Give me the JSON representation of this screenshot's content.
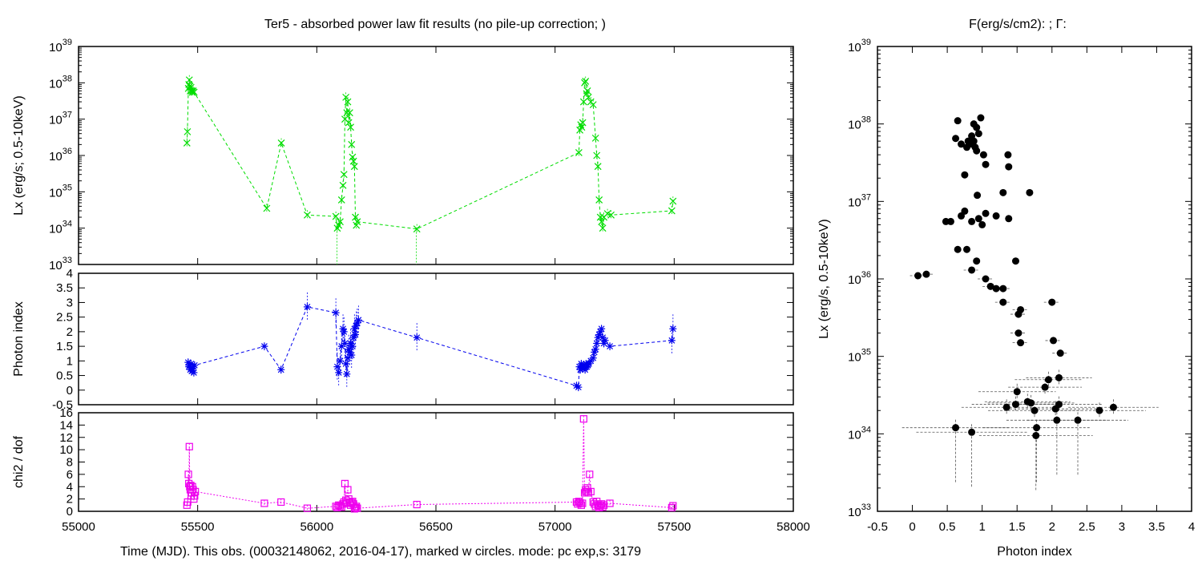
{
  "titles": {
    "left": "Ter5  - absorbed power law fit results (no pile-up correction;    )",
    "right": "F(erg/s/cm2):   ; Γ:"
  },
  "xlabel_time": "Time (MJD). This obs. (00032148062, 2016-04-17), marked w circles. mode: pc exp,s: 3179",
  "colors": {
    "lx": "#00dd00",
    "index": "#0000ee",
    "chi2": "#ee00ee",
    "scatter": "#000000",
    "errbar": "#555555"
  },
  "chart_data": [
    {
      "type": "line",
      "name": "lx-time",
      "ylabel": "Lx (erg/s; 0.5-10keV)",
      "yscale": "log",
      "xlim": [
        55000,
        58000
      ],
      "ylim": [
        1e+33,
        1e+39
      ],
      "xticks": [
        55000,
        55500,
        56000,
        56500,
        57000,
        57500,
        58000
      ],
      "yticks": [
        1e+33,
        1e+34,
        1e+35,
        1e+36,
        1e+37,
        1e+38,
        1e+39
      ],
      "ytick_labels": [
        [
          "10",
          "33"
        ],
        [
          "10",
          "34"
        ],
        [
          "10",
          "35"
        ],
        [
          "10",
          "36"
        ],
        [
          "10",
          "37"
        ],
        [
          "10",
          "38"
        ],
        [
          "10",
          "39"
        ]
      ],
      "points": [
        [
          55455,
          2.2e+36
        ],
        [
          55457,
          4.5e+36
        ],
        [
          55461,
          7e+37
        ],
        [
          55463,
          9e+37
        ],
        [
          55465,
          1.2e+38
        ],
        [
          55467,
          8e+37
        ],
        [
          55469,
          6e+37
        ],
        [
          55472,
          7.5e+37
        ],
        [
          55475,
          6e+37
        ],
        [
          55478,
          5.5e+37
        ],
        [
          55481,
          6e+37
        ],
        [
          55485,
          5.5e+37
        ],
        [
          55790,
          3.5e+34
        ],
        [
          55851,
          2.2e+36
        ],
        [
          55960,
          2.3e+34
        ],
        [
          56080,
          2.1e+34
        ],
        [
          56086,
          1e+34
        ],
        [
          56092,
          1.2e+34
        ],
        [
          56098,
          1.5e+34
        ],
        [
          56104,
          6e+34
        ],
        [
          56110,
          1.5e+35
        ],
        [
          56114,
          3e+35
        ],
        [
          56118,
          1e+37
        ],
        [
          56122,
          4e+37
        ],
        [
          56126,
          1.5e+37
        ],
        [
          56130,
          3e+37
        ],
        [
          56134,
          8e+36
        ],
        [
          56138,
          1.5e+37
        ],
        [
          56142,
          6e+36
        ],
        [
          56146,
          2e+36
        ],
        [
          56150,
          9e+35
        ],
        [
          56154,
          7e+35
        ],
        [
          56158,
          5e+35
        ],
        [
          56162,
          2e+34
        ],
        [
          56166,
          1.2e+34
        ],
        [
          56170,
          1.5e+34
        ],
        [
          56420,
          9.5e+33
        ],
        [
          57100,
          1.2e+36
        ],
        [
          57104,
          5e+36
        ],
        [
          57108,
          7e+36
        ],
        [
          57112,
          6e+36
        ],
        [
          57116,
          8e+36
        ],
        [
          57120,
          3e+37
        ],
        [
          57124,
          1e+38
        ],
        [
          57128,
          1.1e+38
        ],
        [
          57132,
          5e+37
        ],
        [
          57136,
          6e+37
        ],
        [
          57140,
          4e+37
        ],
        [
          57150,
          3e+37
        ],
        [
          57160,
          2.5e+37
        ],
        [
          57170,
          3e+36
        ],
        [
          57175,
          1e+36
        ],
        [
          57180,
          5e+35
        ],
        [
          57185,
          6e+34
        ],
        [
          57190,
          2e+34
        ],
        [
          57195,
          1.5e+34
        ],
        [
          57200,
          1e+34
        ],
        [
          57205,
          2e+34
        ],
        [
          57220,
          2.5e+34
        ],
        [
          57235,
          2.3e+34
        ],
        [
          57490,
          3e+34
        ],
        [
          57495,
          5.5e+34
        ]
      ],
      "lower_arrow_x": [
        56085,
        56418
      ]
    },
    {
      "type": "line",
      "name": "index-time",
      "ylabel": "Photon index",
      "xlim": [
        55000,
        58000
      ],
      "ylim": [
        -0.5,
        4
      ],
      "xticks": [
        55000,
        55500,
        56000,
        56500,
        57000,
        57500,
        58000
      ],
      "yticks": [
        -0.5,
        0,
        0.5,
        1,
        1.5,
        2,
        2.5,
        3,
        3.5,
        4
      ],
      "ytick_labels": [
        "-0.5",
        "0",
        "0.5",
        "1",
        "1.5",
        "2",
        "2.5",
        "3",
        "3.5",
        "4"
      ],
      "points": [
        [
          55460,
          0.95
        ],
        [
          55463,
          0.8
        ],
        [
          55466,
          0.85
        ],
        [
          55469,
          0.7
        ],
        [
          55472,
          0.9
        ],
        [
          55475,
          0.65
        ],
        [
          55478,
          0.75
        ],
        [
          55481,
          0.8
        ],
        [
          55484,
          0.6
        ],
        [
          55487,
          0.85
        ],
        [
          55780,
          1.5
        ],
        [
          55850,
          0.7
        ],
        [
          55960,
          2.85
        ],
        [
          56080,
          2.65
        ],
        [
          56086,
          0.8
        ],
        [
          56092,
          0.6
        ],
        [
          56098,
          1.0
        ],
        [
          56104,
          1.5
        ],
        [
          56110,
          2.1
        ],
        [
          56114,
          2.0
        ],
        [
          56118,
          1.6
        ],
        [
          56122,
          0.9
        ],
        [
          56126,
          0.55
        ],
        [
          56130,
          1.1
        ],
        [
          56134,
          1.4
        ],
        [
          56138,
          1.3
        ],
        [
          56142,
          1.6
        ],
        [
          56146,
          1.2
        ],
        [
          56150,
          1.5
        ],
        [
          56154,
          1.8
        ],
        [
          56158,
          2.1
        ],
        [
          56162,
          1.9
        ],
        [
          56166,
          2.2
        ],
        [
          56170,
          2.3
        ],
        [
          56175,
          2.4
        ],
        [
          56420,
          1.8
        ],
        [
          57090,
          0.15
        ],
        [
          57098,
          0.1
        ],
        [
          57102,
          0.8
        ],
        [
          57106,
          0.7
        ],
        [
          57110,
          0.9
        ],
        [
          57114,
          0.75
        ],
        [
          57118,
          0.8
        ],
        [
          57122,
          0.85
        ],
        [
          57126,
          0.7
        ],
        [
          57130,
          0.9
        ],
        [
          57134,
          0.8
        ],
        [
          57138,
          0.85
        ],
        [
          57142,
          0.9
        ],
        [
          57150,
          1.0
        ],
        [
          57160,
          1.1
        ],
        [
          57165,
          1.3
        ],
        [
          57170,
          1.4
        ],
        [
          57175,
          1.6
        ],
        [
          57180,
          1.8
        ],
        [
          57185,
          1.9
        ],
        [
          57190,
          2.0
        ],
        [
          57195,
          2.1
        ],
        [
          57200,
          1.8
        ],
        [
          57205,
          1.6
        ],
        [
          57210,
          1.7
        ],
        [
          57230,
          1.5
        ],
        [
          57490,
          1.7
        ],
        [
          57495,
          2.1
        ]
      ]
    },
    {
      "type": "line",
      "name": "chi2-time",
      "ylabel": "chi2 / dof",
      "xlabel": "",
      "xlim": [
        55000,
        58000
      ],
      "ylim": [
        0,
        16
      ],
      "xticks": [
        55000,
        55500,
        56000,
        56500,
        57000,
        57500,
        58000
      ],
      "yticks": [
        0,
        2,
        4,
        6,
        8,
        10,
        12,
        14,
        16
      ],
      "ytick_labels": [
        "0",
        "2",
        "4",
        "6",
        "8",
        "10",
        "12",
        "14",
        "16"
      ],
      "xtick_labels": [
        "55000",
        "55500",
        "56000",
        "56500",
        "57000",
        "57500",
        "58000"
      ],
      "points": [
        [
          55455,
          1.0
        ],
        [
          55458,
          1.5
        ],
        [
          55461,
          6.0
        ],
        [
          55463,
          4.5
        ],
        [
          55465,
          10.5
        ],
        [
          55467,
          4.0
        ],
        [
          55469,
          3.5
        ],
        [
          55471,
          4.2
        ],
        [
          55473,
          2.5
        ],
        [
          55475,
          3.0
        ],
        [
          55478,
          4.0
        ],
        [
          55481,
          3.5
        ],
        [
          55484,
          2.0
        ],
        [
          55487,
          2.5
        ],
        [
          55490,
          3.2
        ],
        [
          55780,
          1.3
        ],
        [
          55850,
          1.5
        ],
        [
          55960,
          0.5
        ],
        [
          56080,
          0.8
        ],
        [
          56086,
          0.6
        ],
        [
          56092,
          1.0
        ],
        [
          56098,
          0.9
        ],
        [
          56104,
          0.7
        ],
        [
          56110,
          1.2
        ],
        [
          56114,
          1.5
        ],
        [
          56118,
          4.5
        ],
        [
          56122,
          1.8
        ],
        [
          56126,
          1.3
        ],
        [
          56130,
          3.5
        ],
        [
          56134,
          2.0
        ],
        [
          56138,
          1.5
        ],
        [
          56142,
          1.0
        ],
        [
          56146,
          1.4
        ],
        [
          56150,
          1.6
        ],
        [
          56154,
          1.2
        ],
        [
          56158,
          0.4
        ],
        [
          56162,
          0.6
        ],
        [
          56166,
          0.8
        ],
        [
          56170,
          0.5
        ],
        [
          56420,
          1.1
        ],
        [
          57090,
          1.5
        ],
        [
          57095,
          1.2
        ],
        [
          57100,
          1.6
        ],
        [
          57105,
          1.4
        ],
        [
          57110,
          1.0
        ],
        [
          57115,
          1.3
        ],
        [
          57120,
          15.0
        ],
        [
          57124,
          3.0
        ],
        [
          57128,
          3.5
        ],
        [
          57132,
          3.2
        ],
        [
          57136,
          3.8
        ],
        [
          57140,
          3.0
        ],
        [
          57145,
          6.0
        ],
        [
          57150,
          3.2
        ],
        [
          57160,
          1.5
        ],
        [
          57165,
          1.2
        ],
        [
          57170,
          0.8
        ],
        [
          57175,
          1.6
        ],
        [
          57180,
          1.0
        ],
        [
          57185,
          0.6
        ],
        [
          57190,
          0.9
        ],
        [
          57195,
          1.2
        ],
        [
          57200,
          0.7
        ],
        [
          57205,
          1.0
        ],
        [
          57230,
          1.3
        ],
        [
          57490,
          0.6
        ],
        [
          57495,
          0.9
        ]
      ]
    },
    {
      "type": "scatter",
      "name": "lx-vs-index",
      "xlabel": "Photon index",
      "ylabel": "Lx (erg/s, 0.5-10keV)",
      "yscale": "log",
      "xlim": [
        -0.5,
        4
      ],
      "ylim": [
        1e+33,
        1e+39
      ],
      "xticks": [
        -0.5,
        0,
        0.5,
        1,
        1.5,
        2,
        2.5,
        3,
        3.5,
        4
      ],
      "xtick_labels": [
        "-0.5",
        "0",
        "0.5",
        "1",
        "1.5",
        "2",
        "2.5",
        "3",
        "3.5",
        "4"
      ],
      "yticks": [
        1e+33,
        1e+34,
        1e+35,
        1e+36,
        1e+37,
        1e+38,
        1e+39
      ],
      "ytick_labels": [
        [
          "10",
          "33"
        ],
        [
          "10",
          "34"
        ],
        [
          "10",
          "35"
        ],
        [
          "10",
          "36"
        ],
        [
          "10",
          "37"
        ],
        [
          "10",
          "38"
        ],
        [
          "10",
          "39"
        ]
      ],
      "points": [
        [
          0.65,
          1.1e+38
        ],
        [
          0.62,
          6.5e+37
        ],
        [
          0.7,
          5.5e+37
        ],
        [
          0.78,
          5e+37
        ],
        [
          0.8,
          6e+37
        ],
        [
          0.85,
          7e+37
        ],
        [
          0.88,
          1e+38
        ],
        [
          0.92,
          9e+37
        ],
        [
          0.98,
          1.2e+38
        ],
        [
          0.95,
          7.5e+37
        ],
        [
          0.9,
          5e+37
        ],
        [
          0.85,
          5.5e+37
        ],
        [
          0.88,
          6e+37
        ],
        [
          0.92,
          4.5e+37
        ],
        [
          1.05,
          3e+37
        ],
        [
          1.02,
          4e+37
        ],
        [
          1.37,
          4e+37
        ],
        [
          1.38,
          2.8e+37
        ],
        [
          0.75,
          2.2e+37
        ],
        [
          0.75,
          7.5e+36
        ],
        [
          0.7,
          6.5e+36
        ],
        [
          0.93,
          1.2e+37
        ],
        [
          1.3,
          1.3e+37
        ],
        [
          1.68,
          1.3e+37
        ],
        [
          0.85,
          5.5e+36
        ],
        [
          1.0,
          5e+36
        ],
        [
          0.95,
          6e+36
        ],
        [
          1.2,
          6.5e+36
        ],
        [
          1.05,
          7e+36
        ],
        [
          1.38,
          6e+36
        ],
        [
          0.48,
          5.5e+36
        ],
        [
          0.55,
          5.5e+36
        ],
        [
          0.65,
          2.4e+36
        ],
        [
          0.78,
          2.4e+36
        ],
        [
          0.92,
          1.7e+36
        ],
        [
          1.48,
          1.7e+36
        ],
        [
          0.85,
          1.3e+36
        ],
        [
          0.08,
          1.1e+36
        ],
        [
          0.2,
          1.15e+36
        ],
        [
          1.05,
          1e+36
        ],
        [
          1.12,
          8e+35
        ],
        [
          1.2,
          7.5e+35
        ],
        [
          1.3,
          7.5e+35
        ],
        [
          1.3,
          5e+35
        ],
        [
          1.55,
          4e+35
        ],
        [
          1.52,
          3.5e+35
        ],
        [
          2.0,
          5e+35
        ],
        [
          1.52,
          2e+35
        ],
        [
          1.55,
          1.5e+35
        ],
        [
          2.02,
          1.6e+35
        ],
        [
          2.12,
          1.1e+35
        ],
        [
          1.95,
          5e+34
        ],
        [
          2.1,
          5.3e+34
        ],
        [
          1.9,
          4e+34
        ],
        [
          1.5,
          3.5e+34
        ],
        [
          1.65,
          2.6e+34
        ],
        [
          1.35,
          2.2e+34
        ],
        [
          1.48,
          2.4e+34
        ],
        [
          1.7,
          2.5e+34
        ],
        [
          1.75,
          2e+34
        ],
        [
          2.05,
          2.1e+34
        ],
        [
          2.1,
          2.4e+34
        ],
        [
          2.68,
          2e+34
        ],
        [
          2.88,
          2.2e+34
        ],
        [
          2.07,
          1.5e+34
        ],
        [
          2.37,
          1.5e+34
        ],
        [
          0.62,
          1.2e+34
        ],
        [
          0.85,
          1.05e+34
        ],
        [
          1.78,
          1.2e+34
        ],
        [
          1.77,
          9.5e+33
        ]
      ]
    }
  ]
}
